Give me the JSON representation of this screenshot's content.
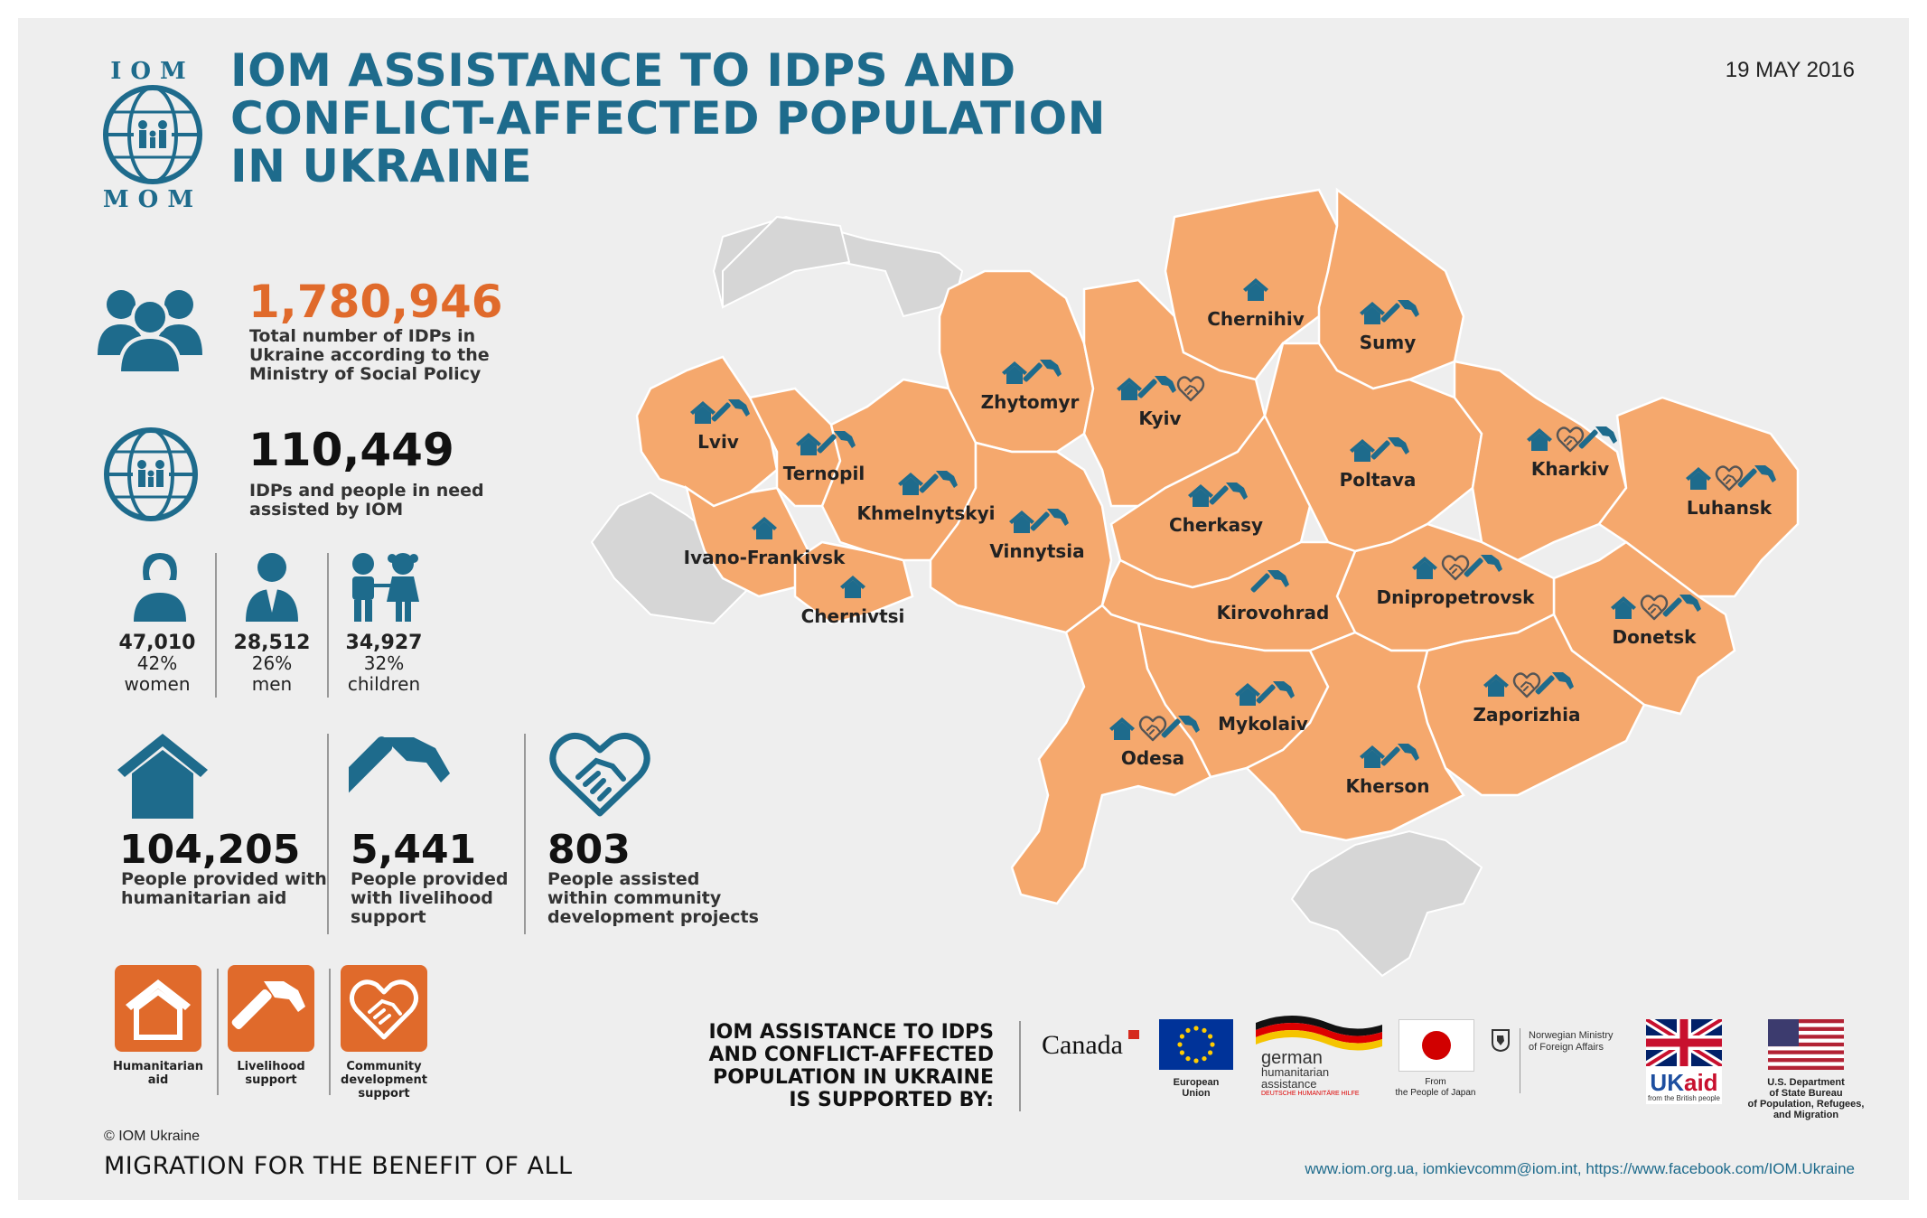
{
  "header": {
    "logo_top": "IOM",
    "logo_bottom": "MOM",
    "title_line1": "IOM ASSISTANCE TO IDPS AND",
    "title_line2": "CONFLICT-AFFECTED POPULATION",
    "title_line3": "IN UKRAINE",
    "date": "19 MAY 2016"
  },
  "stats": {
    "total_idps": "1,780,946",
    "total_idps_label": [
      "Total number of IDPs in",
      "Ukraine according to the",
      "Ministry of Social Policy"
    ],
    "assisted": "110,449",
    "assisted_label": [
      "IDPs and people in need",
      "assisted by IOM"
    ],
    "women": {
      "value": "47,010",
      "pct": "42%",
      "label": "women"
    },
    "men": {
      "value": "28,512",
      "pct": "26%",
      "label": "men"
    },
    "children": {
      "value": "34,927",
      "pct": "32%",
      "label": "children"
    }
  },
  "assistance": [
    {
      "value": "104,205",
      "label": [
        "People provided with",
        "humanitarian aid"
      ]
    },
    {
      "value": "5,441",
      "label": [
        "People provided",
        "with livelihood",
        "support"
      ]
    },
    {
      "value": "803",
      "label": [
        "People assisted",
        "within community",
        "development projects"
      ]
    }
  ],
  "legend": [
    {
      "label": [
        "Humanitarian",
        "aid"
      ],
      "icon": "house-icon"
    },
    {
      "label": [
        "Livelihood",
        "support"
      ],
      "icon": "hammer-icon"
    },
    {
      "label": [
        "Community",
        "development",
        "support"
      ],
      "icon": "handshake-icon"
    }
  ],
  "regions": [
    {
      "name": "Chernihiv",
      "icons": [
        "house"
      ]
    },
    {
      "name": "Sumy",
      "icons": [
        "house",
        "hammer"
      ]
    },
    {
      "name": "Zhytomyr",
      "icons": [
        "house",
        "hammer"
      ]
    },
    {
      "name": "Kyiv",
      "icons": [
        "house",
        "hammer",
        "handshake"
      ]
    },
    {
      "name": "Lviv",
      "icons": [
        "house",
        "hammer"
      ]
    },
    {
      "name": "Ternopil",
      "icons": [
        "house",
        "hammer"
      ]
    },
    {
      "name": "Khmelnytskyi",
      "icons": [
        "house",
        "hammer"
      ]
    },
    {
      "name": "Vinnytsia",
      "icons": [
        "house",
        "hammer"
      ]
    },
    {
      "name": "Ivano-Frankivsk",
      "icons": [
        "house"
      ]
    },
    {
      "name": "Chernivtsi",
      "icons": [
        "house"
      ]
    },
    {
      "name": "Cherkasy",
      "icons": [
        "house",
        "hammer"
      ]
    },
    {
      "name": "Poltava",
      "icons": [
        "house",
        "hammer"
      ]
    },
    {
      "name": "Kharkiv",
      "icons": [
        "house",
        "handshake",
        "hammer"
      ]
    },
    {
      "name": "Luhansk",
      "icons": [
        "house",
        "handshake",
        "hammer"
      ]
    },
    {
      "name": "Kirovohrad",
      "icons": [
        "hammer"
      ]
    },
    {
      "name": "Dnipropetrovsk",
      "icons": [
        "house",
        "handshake",
        "hammer"
      ]
    },
    {
      "name": "Donetsk",
      "icons": [
        "house",
        "handshake",
        "hammer"
      ]
    },
    {
      "name": "Mykolaiv",
      "icons": [
        "house",
        "hammer"
      ]
    },
    {
      "name": "Odesa",
      "icons": [
        "house",
        "handshake",
        "hammer"
      ]
    },
    {
      "name": "Zaporizhia",
      "icons": [
        "house",
        "handshake",
        "hammer"
      ]
    },
    {
      "name": "Kherson",
      "icons": [
        "house",
        "hammer"
      ]
    }
  ],
  "supported": {
    "heading": [
      "IOM ASSISTANCE TO IDPS",
      "AND CONFLICT-AFFECTED",
      "POPULATION IN UKRAINE",
      "IS SUPPORTED BY:"
    ],
    "donors": {
      "canada": "Canada",
      "eu": [
        "European",
        "Union"
      ],
      "german": [
        "german",
        "humanitarian",
        "assistance",
        "DEUTSCHE HUMANITÄRE HILFE"
      ],
      "japan": [
        "From",
        "the People of Japan"
      ],
      "norway": [
        "Norwegian Ministry",
        "of Foreign Affairs"
      ],
      "ukaid": [
        "UK",
        "aid",
        "from the British people"
      ],
      "usa": [
        "U.S. Department",
        "of State Bureau",
        "of Population, Refugees,",
        "and Migration"
      ]
    }
  },
  "footer": {
    "copyright": "© IOM Ukraine",
    "slogan": "MIGRATION FOR THE BENEFIT OF ALL",
    "links": "www.iom.org.ua,  iomkievcomm@iom.int, https://www.facebook.com/IOM.Ukraine"
  },
  "colors": {
    "teal": "#1e6b8c",
    "orange": "#e06a2b",
    "map": "#f5a86d",
    "neighbors": "#d6d6d6"
  }
}
